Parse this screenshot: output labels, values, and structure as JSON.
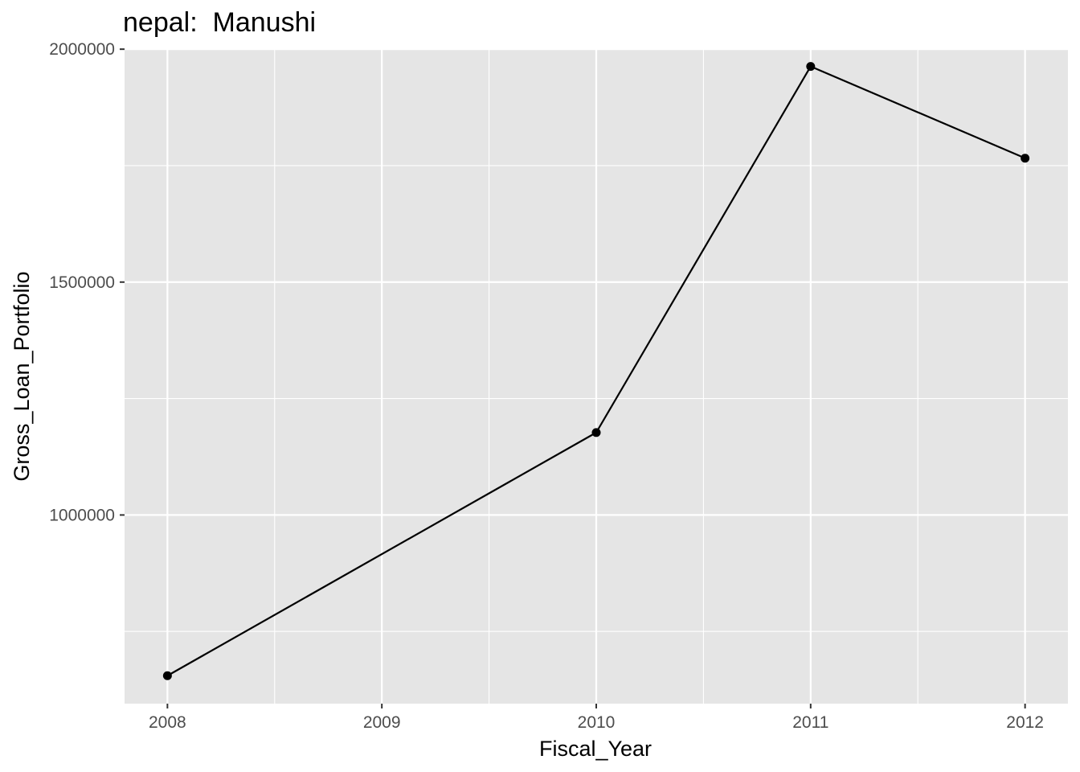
{
  "chart_data": {
    "type": "line",
    "title": "nepal:  Manushi",
    "xlabel": "Fiscal_Year",
    "ylabel": "Gross_Loan_Portfolio",
    "x": [
      2008,
      2010,
      2011,
      2012
    ],
    "series": [
      {
        "values": [
          655000,
          1177000,
          1963000,
          1766000
        ]
      }
    ],
    "x_ticks": [
      "2008",
      "2009",
      "2010",
      "2011",
      "2012"
    ],
    "y_ticks": [
      "1000000",
      "1500000",
      "2000000"
    ],
    "xlim": [
      2007.8,
      2012.2
    ],
    "ylim": [
      595000,
      2002000
    ],
    "grid": true,
    "markers": true,
    "colors": {
      "panel_background": "#e5e5e5",
      "grid": "#ffffff",
      "line": "#000000",
      "tick_text": "#4d4d4d"
    }
  }
}
